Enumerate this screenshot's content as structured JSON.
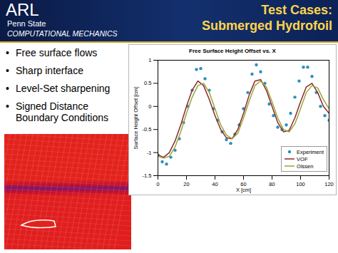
{
  "header": {
    "logo": "ARL",
    "institution": "Penn State",
    "group": "COMPUTATIONAL MECHANICS",
    "title_lines": [
      "Test Cases:",
      "Submerged Hydrofoil"
    ]
  },
  "bullets": [
    "Free surface flows",
    "Sharp interface",
    "Level-Set sharpening",
    "Signed Distance Boundary Conditions"
  ],
  "chart_data": {
    "type": "line",
    "title": "Free Surface Height Offset vs. X",
    "x_label": "X [cm]",
    "y_label": "Surface Height Offset [cm]",
    "xlim": [
      0,
      120
    ],
    "ylim": [
      -1.5,
      1
    ],
    "xticks": [
      0,
      20,
      40,
      60,
      80,
      100,
      120
    ],
    "yticks": [
      -1.5,
      -1,
      -0.5,
      0,
      0.5,
      1
    ],
    "grid": false,
    "legend": "lower right",
    "series": [
      {
        "name": "Experiment",
        "type": "scatter",
        "marker": "circle",
        "color": "#2e8fbf",
        "x": [
          0,
          3,
          6,
          9,
          12,
          15,
          18,
          21,
          24,
          27,
          30,
          33,
          36,
          39,
          42,
          45,
          48,
          51,
          54,
          57,
          60,
          63,
          66,
          69,
          72,
          75,
          78,
          81,
          84,
          87,
          90,
          93,
          96,
          99,
          102,
          105,
          108,
          111,
          114,
          117,
          120
        ],
        "values": [
          -1.05,
          -1.2,
          -1.25,
          -1.1,
          -0.95,
          -0.7,
          -0.35,
          0.0,
          0.35,
          0.8,
          0.82,
          0.6,
          0.35,
          -0.05,
          -0.3,
          -0.55,
          -0.72,
          -0.8,
          -0.6,
          -0.4,
          -0.05,
          0.3,
          0.7,
          0.9,
          0.75,
          0.5,
          0.05,
          -0.2,
          -0.45,
          -0.5,
          -0.4,
          -0.15,
          0.2,
          0.55,
          0.85,
          0.85,
          0.65,
          0.3,
          0.0,
          -0.2,
          -0.3
        ]
      },
      {
        "name": "VOF",
        "type": "line",
        "color": "#8b2a2a",
        "x": [
          0,
          4,
          8,
          12,
          16,
          20,
          24,
          28,
          32,
          36,
          40,
          44,
          48,
          52,
          56,
          60,
          64,
          68,
          72,
          76,
          80,
          84,
          88,
          92,
          96,
          100,
          104,
          108,
          112,
          116,
          120
        ],
        "values": [
          -1.05,
          -1.1,
          -1.0,
          -0.75,
          -0.4,
          0.0,
          0.35,
          0.55,
          0.45,
          0.15,
          -0.2,
          -0.5,
          -0.68,
          -0.7,
          -0.5,
          -0.15,
          0.25,
          0.55,
          0.58,
          0.35,
          0.0,
          -0.35,
          -0.55,
          -0.52,
          -0.25,
          0.1,
          0.42,
          0.5,
          0.3,
          0.0,
          -0.15
        ]
      },
      {
        "name": "Olssen",
        "type": "line",
        "color": "#9aa63a",
        "x": [
          0,
          4,
          8,
          12,
          16,
          20,
          24,
          28,
          32,
          36,
          40,
          44,
          48,
          52,
          56,
          60,
          64,
          68,
          72,
          76,
          80,
          84,
          88,
          92,
          96,
          100,
          104,
          108,
          112,
          116,
          120
        ],
        "values": [
          -1.08,
          -1.12,
          -1.08,
          -0.88,
          -0.55,
          -0.15,
          0.2,
          0.45,
          0.5,
          0.3,
          -0.05,
          -0.4,
          -0.62,
          -0.7,
          -0.58,
          -0.25,
          0.12,
          0.45,
          0.55,
          0.42,
          0.1,
          -0.25,
          -0.5,
          -0.55,
          -0.38,
          -0.05,
          0.3,
          0.45,
          0.4,
          0.15,
          -0.05
        ]
      }
    ]
  }
}
